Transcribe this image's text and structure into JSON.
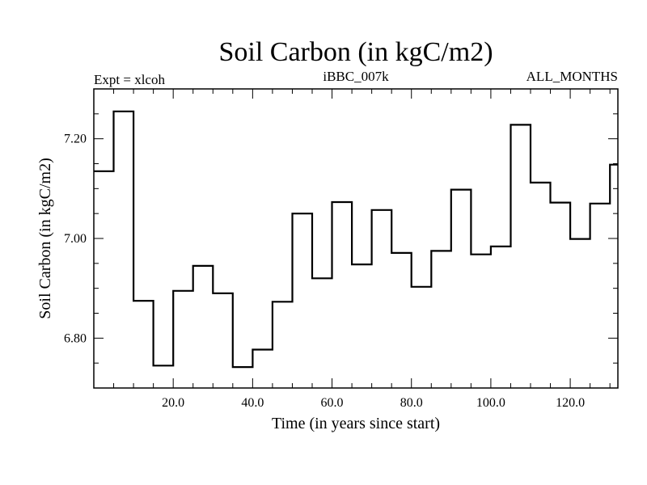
{
  "chart_data": {
    "type": "line",
    "style": "step",
    "title": "Soil Carbon (in kgC/m2)",
    "subtitle_left": "Expt = xlcoh",
    "subtitle_center": "iBBC_007k",
    "subtitle_right": "ALL_MONTHS",
    "xlabel": "Time (in years since start)",
    "ylabel": "Soil Carbon (in kgC/m2)",
    "xlim": [
      0,
      132
    ],
    "ylim": [
      6.7,
      7.3
    ],
    "x_ticks": [
      20,
      40,
      60,
      80,
      100,
      120
    ],
    "x_tick_labels": [
      "20.0",
      "40.0",
      "60.0",
      "80.0",
      "100.0",
      "120.0"
    ],
    "y_ticks": [
      6.8,
      7.0,
      7.2
    ],
    "y_tick_labels": [
      "6.80",
      "7.00",
      "7.20"
    ],
    "y_minor_step": 0.05,
    "x_minor_step": 5,
    "series": [
      {
        "name": "Soil Carbon",
        "x": [
          0,
          5,
          10,
          15,
          20,
          25,
          30,
          35,
          40,
          45,
          50,
          55,
          60,
          65,
          70,
          75,
          80,
          85,
          90,
          95,
          100,
          105,
          110,
          115,
          120,
          125,
          130
        ],
        "values": [
          7.135,
          7.255,
          6.875,
          6.745,
          6.895,
          6.945,
          6.89,
          6.742,
          6.777,
          6.873,
          7.05,
          6.92,
          7.073,
          6.948,
          7.057,
          6.971,
          6.903,
          6.975,
          7.098,
          6.968,
          6.984,
          7.228,
          7.112,
          7.072,
          6.999,
          7.07,
          7.148
        ]
      }
    ]
  }
}
